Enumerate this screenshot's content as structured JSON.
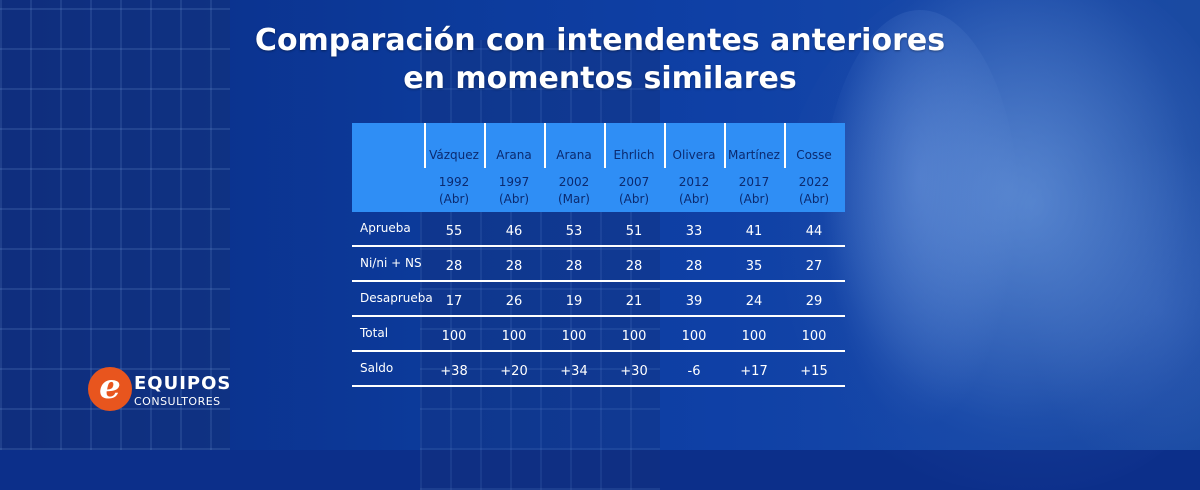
{
  "title_line1": "Comparación con intendentes anteriores",
  "title_line2": "en momentos similares",
  "brand": {
    "line1": "EQUIPOS",
    "line2": "CONSULTORES",
    "logo_letter": "e"
  },
  "chart_data": {
    "type": "table",
    "columns": [
      {
        "name": "Vázquez",
        "year": "1992",
        "month": "(Abr)"
      },
      {
        "name": "Arana",
        "year": "1997",
        "month": "(Abr)"
      },
      {
        "name": "Arana",
        "year": "2002",
        "month": "(Mar)"
      },
      {
        "name": "Ehrlich",
        "year": "2007",
        "month": "(Abr)"
      },
      {
        "name": "Olivera",
        "year": "2012",
        "month": "(Abr)"
      },
      {
        "name": "Martínez",
        "year": "2017",
        "month": "(Abr)"
      },
      {
        "name": "Cosse",
        "year": "2022",
        "month": "(Abr)"
      }
    ],
    "rows": [
      {
        "label": "Aprueba",
        "values": [
          "55",
          "46",
          "53",
          "51",
          "33",
          "41",
          "44"
        ]
      },
      {
        "label": "Ni/ni + NS",
        "values": [
          "28",
          "28",
          "28",
          "28",
          "28",
          "35",
          "27"
        ]
      },
      {
        "label": "Desaprueba",
        "values": [
          "17",
          "26",
          "19",
          "21",
          "39",
          "24",
          "29"
        ]
      },
      {
        "label": "Total",
        "values": [
          "100",
          "100",
          "100",
          "100",
          "100",
          "100",
          "100"
        ]
      },
      {
        "label": "Saldo",
        "values": [
          "+38",
          "+20",
          "+34",
          "+30",
          "-6",
          "+17",
          "+15"
        ]
      }
    ]
  },
  "colors": {
    "header_fill": "#2f8ef5",
    "header_text": "#0b2a6f",
    "background": "#0c3a9a",
    "logo_orange": "#e8551e"
  }
}
